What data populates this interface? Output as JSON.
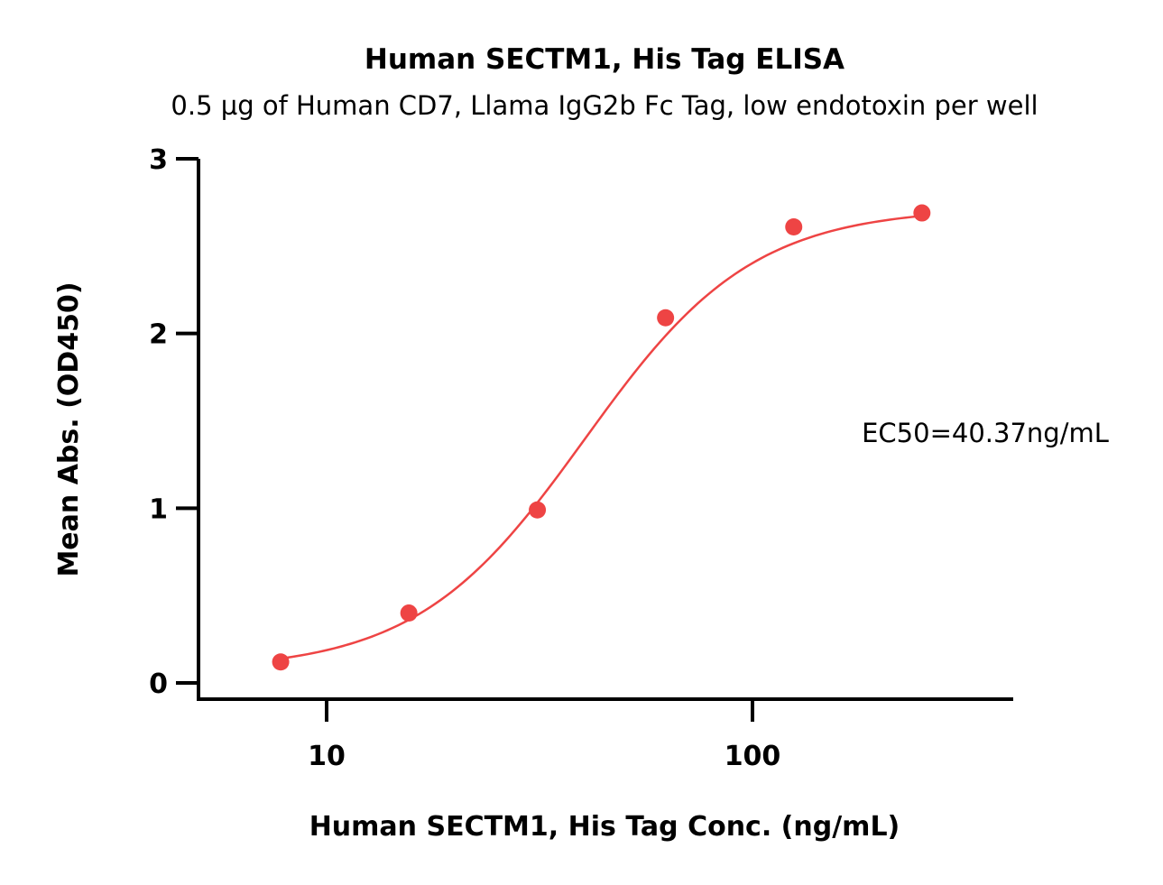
{
  "chart_data": {
    "type": "scatter",
    "title": "Human SECTM1, His Tag ELISA",
    "subtitle": "0.5 µg of Human CD7, Llama IgG2b Fc Tag, low endotoxin per well",
    "xlabel": "Human SECTM1, His Tag Conc. (ng/mL)",
    "ylabel": "Mean Abs. (OD450)",
    "x_scale": "log",
    "xlim": [
      5,
      400
    ],
    "ylim": [
      0,
      3
    ],
    "x_ticks": [
      10,
      100
    ],
    "y_ticks": [
      0,
      1,
      2,
      3
    ],
    "grid": false,
    "series": [
      {
        "color": "#ee4444",
        "x": [
          7.8,
          15.6,
          31.25,
          62.5,
          125,
          250
        ],
        "y": [
          0.12,
          0.4,
          0.99,
          2.09,
          2.61,
          2.69
        ]
      }
    ],
    "fit": {
      "model": "4PL",
      "bottom": 0.07,
      "top": 2.72,
      "ec50": 40.37,
      "hill": 2.2,
      "x_range": [
        7.8,
        250
      ]
    },
    "annotation": "EC50=40.37ng/mL"
  }
}
